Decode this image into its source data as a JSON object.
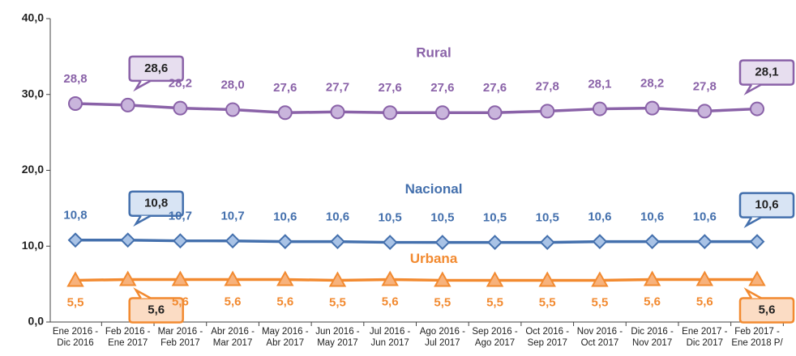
{
  "chart_data": {
    "type": "line",
    "categories": [
      "Ene 2016 -\nDic 2016",
      "Feb 2016 -\nEne 2017",
      "Mar 2016 -\nFeb 2017",
      "Abr 2016 -\nMar 2017",
      "May 2016 -\nAbr 2017",
      "Jun 2016 -\nMay 2017",
      "Jul 2016 -\nJun 2017",
      "Ago 2016 -\nJul 2017",
      "Sep 2016 -\nAgo 2017",
      "Oct 2016 -\nSep 2017",
      "Nov 2016 -\nOct 2017",
      "Dic 2016 -\nNov 2017",
      "Ene 2017 -\nDic 2017",
      "Feb 2017 -\nEne 2018 P/"
    ],
    "series": [
      {
        "name": "Rural",
        "color": "#8a62a8",
        "marker_fill": "#c9b5dc",
        "marker": "circle",
        "label_side": "above",
        "values": [
          28.8,
          28.6,
          28.2,
          28.0,
          27.6,
          27.7,
          27.6,
          27.6,
          27.6,
          27.8,
          28.1,
          28.2,
          27.8,
          28.1
        ],
        "value_labels": [
          "28,8",
          "28,6",
          "28,2",
          "28,0",
          "27,6",
          "27,7",
          "27,6",
          "27,6",
          "27,6",
          "27,8",
          "28,1",
          "28,2",
          "27,8",
          "28,1"
        ]
      },
      {
        "name": "Nacional",
        "color": "#4470ad",
        "marker_fill": "#a9c3e6",
        "marker": "diamond",
        "label_side": "above",
        "values": [
          10.8,
          10.8,
          10.7,
          10.7,
          10.6,
          10.6,
          10.5,
          10.5,
          10.5,
          10.5,
          10.6,
          10.6,
          10.6,
          10.6
        ],
        "value_labels": [
          "10,8",
          "10,8",
          "10,7",
          "10,7",
          "10,6",
          "10,6",
          "10,5",
          "10,5",
          "10,5",
          "10,5",
          "10,6",
          "10,6",
          "10,6",
          "10,6"
        ]
      },
      {
        "name": "Urbana",
        "color": "#f28a30",
        "marker_fill": "#f7b27c",
        "marker": "triangle",
        "label_side": "below",
        "values": [
          5.5,
          5.6,
          5.6,
          5.6,
          5.6,
          5.5,
          5.6,
          5.5,
          5.5,
          5.5,
          5.5,
          5.6,
          5.6,
          5.6
        ],
        "value_labels": [
          "5,5",
          "5,6",
          "5,6",
          "5,6",
          "5,6",
          "5,5",
          "5,6",
          "5,5",
          "5,5",
          "5,5",
          "5,5",
          "5,6",
          "5,6",
          "5,6"
        ]
      }
    ],
    "callouts": [
      1,
      13
    ],
    "ylim": [
      0,
      40
    ],
    "yticks": [
      {
        "value": 0,
        "label": "0,0"
      },
      {
        "value": 10,
        "label": "10,0"
      },
      {
        "value": 20,
        "label": "20,0"
      },
      {
        "value": 30,
        "label": "30,0"
      },
      {
        "value": 40,
        "label": "40,0"
      }
    ],
    "grid": false
  }
}
